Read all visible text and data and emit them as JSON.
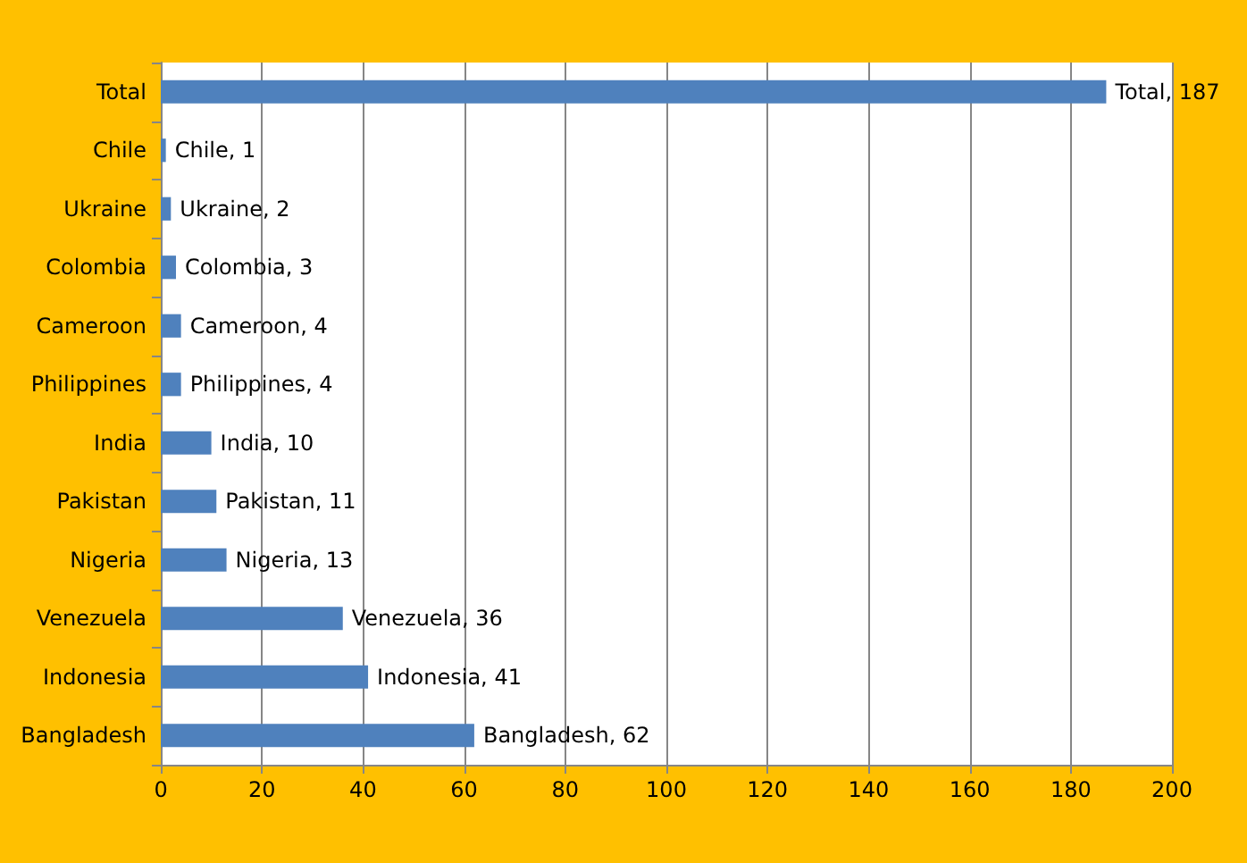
{
  "chart_data": {
    "type": "bar",
    "orientation": "horizontal",
    "categories": [
      "Total",
      "Chile",
      "Ukraine",
      "Colombia",
      "Cameroon",
      "Philippines",
      "India",
      "Pakistan",
      "Nigeria",
      "Venezuela",
      "Indonesia",
      "Bangladesh"
    ],
    "values": [
      187,
      1,
      2,
      3,
      4,
      4,
      10,
      11,
      13,
      36,
      41,
      62
    ],
    "value_labels": [
      "Total, 187",
      "Chile, 1",
      "Ukraine, 2",
      "Colombia, 3",
      "Cameroon, 4",
      "Philippines, 4",
      "India, 10",
      "Pakistan, 11",
      "Nigeria, 13",
      "Venezuela, 36",
      "Indonesia, 41",
      "Bangladesh, 62"
    ],
    "color": "#4f81bd",
    "xlim": [
      0,
      200
    ],
    "xticks": [
      0,
      20,
      40,
      60,
      80,
      100,
      120,
      140,
      160,
      180,
      200
    ],
    "grid": "x"
  }
}
